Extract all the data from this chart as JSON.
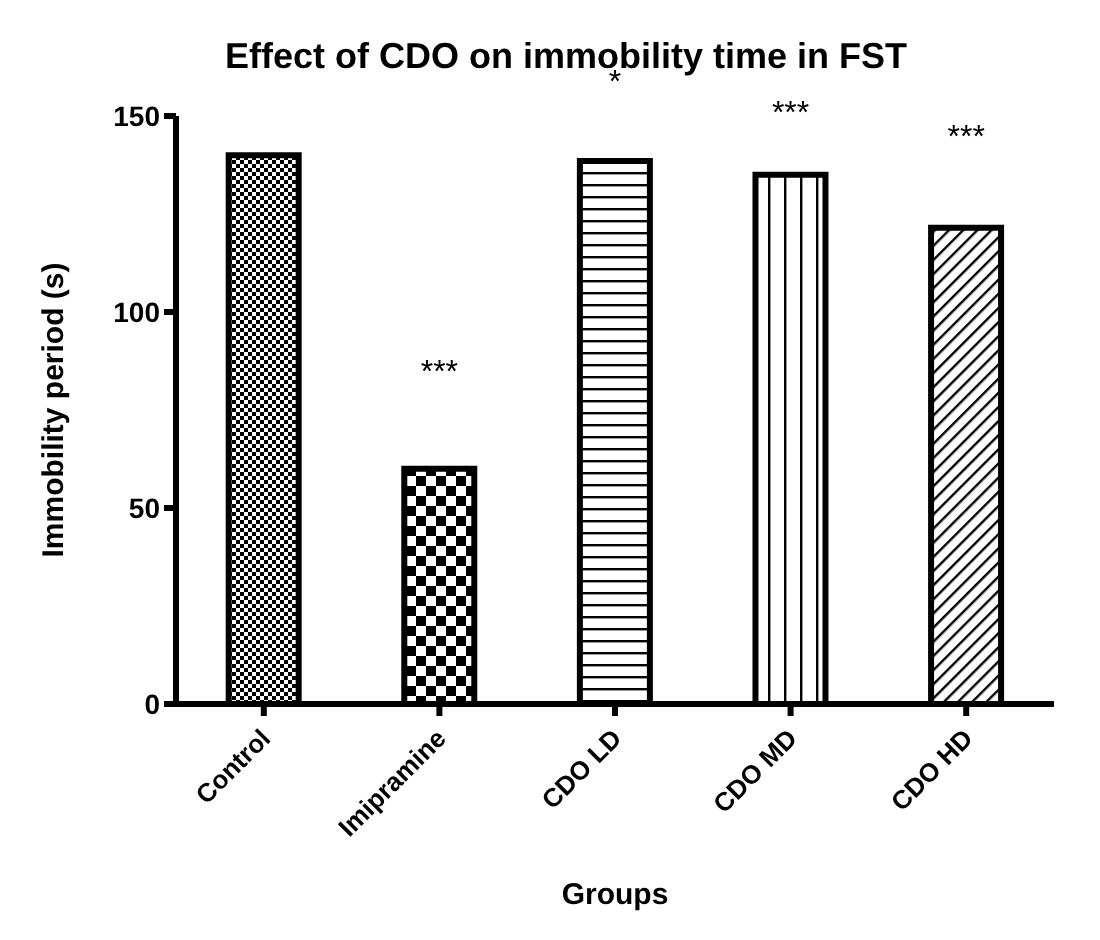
{
  "chart_data": {
    "type": "bar",
    "title": "Effect of CDO on immobility time in FST",
    "xlabel": "Groups",
    "ylabel": "Immobility period (s)",
    "categories": [
      "Control",
      "Imipramine",
      "CDO LD",
      "CDO MD",
      "CDO HD"
    ],
    "values": [
      140,
      60,
      138.5,
      135,
      121.5
    ],
    "color": "#000000",
    "ylim": [
      0,
      150
    ],
    "yticks": [
      0,
      50,
      100,
      150
    ],
    "grid": false,
    "legend": false,
    "annotations": [
      "***",
      "*",
      "***",
      "***"
    ]
  }
}
